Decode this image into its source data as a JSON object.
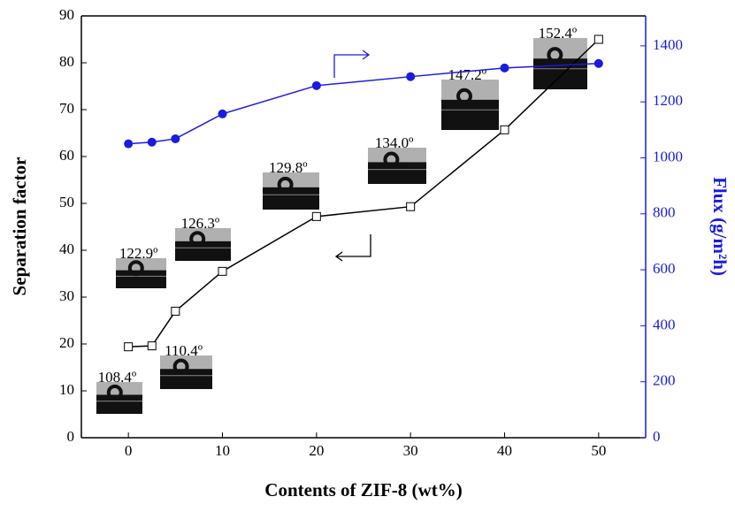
{
  "chart_data": {
    "type": "line",
    "x_label": "Contents of ZIF-8 (wt%)",
    "y_label": "Separation factor",
    "y2_label": "Flux (g/m²h)",
    "xlim": [
      -5,
      55
    ],
    "xticks": [
      0,
      10,
      20,
      30,
      40,
      50
    ],
    "ylim": [
      0,
      90
    ],
    "yticks": [
      0,
      10,
      20,
      30,
      40,
      50,
      60,
      70,
      80,
      90
    ],
    "y2lim": [
      0,
      1507
    ],
    "y2ticks": [
      0,
      200,
      400,
      600,
      800,
      1000,
      1200,
      1400
    ],
    "series": [
      {
        "color": "#000000",
        "marker": "square",
        "x": [
          0,
          2.5,
          5,
          10,
          20,
          30,
          40,
          50
        ],
        "values": [
          19.4,
          19.6,
          27,
          35.5,
          47.2,
          49.3,
          65.7,
          85
        ]
      },
      {
        "color": "#1a1ae0",
        "marker": "circle",
        "axis": "y2",
        "x": [
          0,
          2.5,
          5,
          10,
          20,
          30,
          40,
          50
        ],
        "values": [
          1050,
          1056,
          1068,
          1157,
          1258,
          1290,
          1321,
          1337
        ]
      }
    ],
    "annotations": [
      "108.4º",
      "110.4º",
      "122.9º",
      "126.3º",
      "129.8º",
      "134.0º",
      "147.2º",
      "152.4º"
    ]
  }
}
